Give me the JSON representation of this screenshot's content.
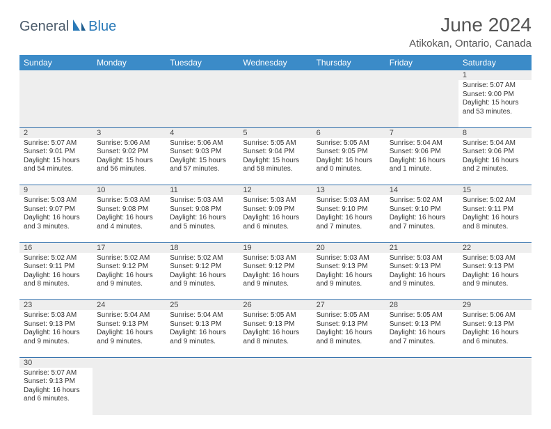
{
  "brand": {
    "part1": "General",
    "part2": "Blue"
  },
  "title": "June 2024",
  "location": "Atikokan, Ontario, Canada",
  "colors": {
    "header_bg": "#3b8bc8",
    "header_fg": "#ffffff",
    "rule": "#2a6aa8",
    "daynum_bg": "#eeeeee",
    "text": "#333333"
  },
  "day_headers": [
    "Sunday",
    "Monday",
    "Tuesday",
    "Wednesday",
    "Thursday",
    "Friday",
    "Saturday"
  ],
  "weeks": [
    [
      null,
      null,
      null,
      null,
      null,
      null,
      {
        "n": "1",
        "sr": "Sunrise: 5:07 AM",
        "ss": "Sunset: 9:00 PM",
        "d1": "Daylight: 15 hours",
        "d2": "and 53 minutes."
      }
    ],
    [
      {
        "n": "2",
        "sr": "Sunrise: 5:07 AM",
        "ss": "Sunset: 9:01 PM",
        "d1": "Daylight: 15 hours",
        "d2": "and 54 minutes."
      },
      {
        "n": "3",
        "sr": "Sunrise: 5:06 AM",
        "ss": "Sunset: 9:02 PM",
        "d1": "Daylight: 15 hours",
        "d2": "and 56 minutes."
      },
      {
        "n": "4",
        "sr": "Sunrise: 5:06 AM",
        "ss": "Sunset: 9:03 PM",
        "d1": "Daylight: 15 hours",
        "d2": "and 57 minutes."
      },
      {
        "n": "5",
        "sr": "Sunrise: 5:05 AM",
        "ss": "Sunset: 9:04 PM",
        "d1": "Daylight: 15 hours",
        "d2": "and 58 minutes."
      },
      {
        "n": "6",
        "sr": "Sunrise: 5:05 AM",
        "ss": "Sunset: 9:05 PM",
        "d1": "Daylight: 16 hours",
        "d2": "and 0 minutes."
      },
      {
        "n": "7",
        "sr": "Sunrise: 5:04 AM",
        "ss": "Sunset: 9:06 PM",
        "d1": "Daylight: 16 hours",
        "d2": "and 1 minute."
      },
      {
        "n": "8",
        "sr": "Sunrise: 5:04 AM",
        "ss": "Sunset: 9:06 PM",
        "d1": "Daylight: 16 hours",
        "d2": "and 2 minutes."
      }
    ],
    [
      {
        "n": "9",
        "sr": "Sunrise: 5:03 AM",
        "ss": "Sunset: 9:07 PM",
        "d1": "Daylight: 16 hours",
        "d2": "and 3 minutes."
      },
      {
        "n": "10",
        "sr": "Sunrise: 5:03 AM",
        "ss": "Sunset: 9:08 PM",
        "d1": "Daylight: 16 hours",
        "d2": "and 4 minutes."
      },
      {
        "n": "11",
        "sr": "Sunrise: 5:03 AM",
        "ss": "Sunset: 9:08 PM",
        "d1": "Daylight: 16 hours",
        "d2": "and 5 minutes."
      },
      {
        "n": "12",
        "sr": "Sunrise: 5:03 AM",
        "ss": "Sunset: 9:09 PM",
        "d1": "Daylight: 16 hours",
        "d2": "and 6 minutes."
      },
      {
        "n": "13",
        "sr": "Sunrise: 5:03 AM",
        "ss": "Sunset: 9:10 PM",
        "d1": "Daylight: 16 hours",
        "d2": "and 7 minutes."
      },
      {
        "n": "14",
        "sr": "Sunrise: 5:02 AM",
        "ss": "Sunset: 9:10 PM",
        "d1": "Daylight: 16 hours",
        "d2": "and 7 minutes."
      },
      {
        "n": "15",
        "sr": "Sunrise: 5:02 AM",
        "ss": "Sunset: 9:11 PM",
        "d1": "Daylight: 16 hours",
        "d2": "and 8 minutes."
      }
    ],
    [
      {
        "n": "16",
        "sr": "Sunrise: 5:02 AM",
        "ss": "Sunset: 9:11 PM",
        "d1": "Daylight: 16 hours",
        "d2": "and 8 minutes."
      },
      {
        "n": "17",
        "sr": "Sunrise: 5:02 AM",
        "ss": "Sunset: 9:12 PM",
        "d1": "Daylight: 16 hours",
        "d2": "and 9 minutes."
      },
      {
        "n": "18",
        "sr": "Sunrise: 5:02 AM",
        "ss": "Sunset: 9:12 PM",
        "d1": "Daylight: 16 hours",
        "d2": "and 9 minutes."
      },
      {
        "n": "19",
        "sr": "Sunrise: 5:03 AM",
        "ss": "Sunset: 9:12 PM",
        "d1": "Daylight: 16 hours",
        "d2": "and 9 minutes."
      },
      {
        "n": "20",
        "sr": "Sunrise: 5:03 AM",
        "ss": "Sunset: 9:13 PM",
        "d1": "Daylight: 16 hours",
        "d2": "and 9 minutes."
      },
      {
        "n": "21",
        "sr": "Sunrise: 5:03 AM",
        "ss": "Sunset: 9:13 PM",
        "d1": "Daylight: 16 hours",
        "d2": "and 9 minutes."
      },
      {
        "n": "22",
        "sr": "Sunrise: 5:03 AM",
        "ss": "Sunset: 9:13 PM",
        "d1": "Daylight: 16 hours",
        "d2": "and 9 minutes."
      }
    ],
    [
      {
        "n": "23",
        "sr": "Sunrise: 5:03 AM",
        "ss": "Sunset: 9:13 PM",
        "d1": "Daylight: 16 hours",
        "d2": "and 9 minutes."
      },
      {
        "n": "24",
        "sr": "Sunrise: 5:04 AM",
        "ss": "Sunset: 9:13 PM",
        "d1": "Daylight: 16 hours",
        "d2": "and 9 minutes."
      },
      {
        "n": "25",
        "sr": "Sunrise: 5:04 AM",
        "ss": "Sunset: 9:13 PM",
        "d1": "Daylight: 16 hours",
        "d2": "and 9 minutes."
      },
      {
        "n": "26",
        "sr": "Sunrise: 5:05 AM",
        "ss": "Sunset: 9:13 PM",
        "d1": "Daylight: 16 hours",
        "d2": "and 8 minutes."
      },
      {
        "n": "27",
        "sr": "Sunrise: 5:05 AM",
        "ss": "Sunset: 9:13 PM",
        "d1": "Daylight: 16 hours",
        "d2": "and 8 minutes."
      },
      {
        "n": "28",
        "sr": "Sunrise: 5:05 AM",
        "ss": "Sunset: 9:13 PM",
        "d1": "Daylight: 16 hours",
        "d2": "and 7 minutes."
      },
      {
        "n": "29",
        "sr": "Sunrise: 5:06 AM",
        "ss": "Sunset: 9:13 PM",
        "d1": "Daylight: 16 hours",
        "d2": "and 6 minutes."
      }
    ],
    [
      {
        "n": "30",
        "sr": "Sunrise: 5:07 AM",
        "ss": "Sunset: 9:13 PM",
        "d1": "Daylight: 16 hours",
        "d2": "and 6 minutes."
      },
      null,
      null,
      null,
      null,
      null,
      null
    ]
  ]
}
